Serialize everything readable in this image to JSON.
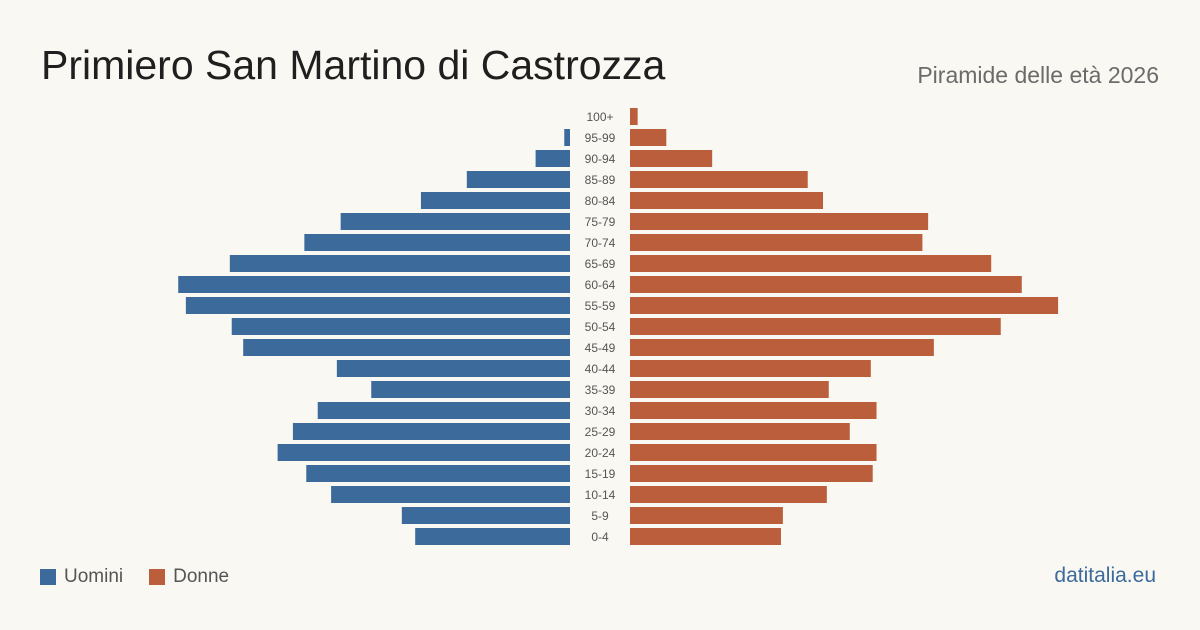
{
  "header": {
    "title": "Primiero San Martino di Castrozza",
    "subtitle": "Piramide delle età 2026"
  },
  "legend": {
    "men_label": "Uomini",
    "women_label": "Donne"
  },
  "brand": {
    "label": "datitalia.eu"
  },
  "colors": {
    "men": "#3b6a9b",
    "women": "#bb5e3c",
    "brand": "#3b6a9b"
  },
  "chart_data": {
    "type": "bar",
    "orientation": "horizontal-mirrored",
    "categories": [
      "100+",
      "95-99",
      "90-94",
      "85-89",
      "80-84",
      "75-79",
      "70-74",
      "65-69",
      "60-64",
      "55-59",
      "50-54",
      "45-49",
      "40-44",
      "35-39",
      "30-34",
      "25-29",
      "20-24",
      "15-19",
      "10-14",
      "5-9",
      "0-4"
    ],
    "series": [
      {
        "name": "Uomini",
        "side": "left",
        "values": [
          0,
          3,
          18,
          54,
          78,
          120,
          139,
          178,
          205,
          201,
          177,
          171,
          122,
          104,
          132,
          145,
          153,
          138,
          125,
          88,
          81
        ]
      },
      {
        "name": "Donne",
        "side": "right",
        "values": [
          4,
          19,
          43,
          93,
          101,
          156,
          153,
          189,
          205,
          224,
          194,
          159,
          126,
          104,
          129,
          115,
          129,
          127,
          103,
          80,
          79
        ]
      }
    ],
    "xlim": [
      0,
      225
    ],
    "grid": false,
    "legend_position": "bottom-left"
  }
}
